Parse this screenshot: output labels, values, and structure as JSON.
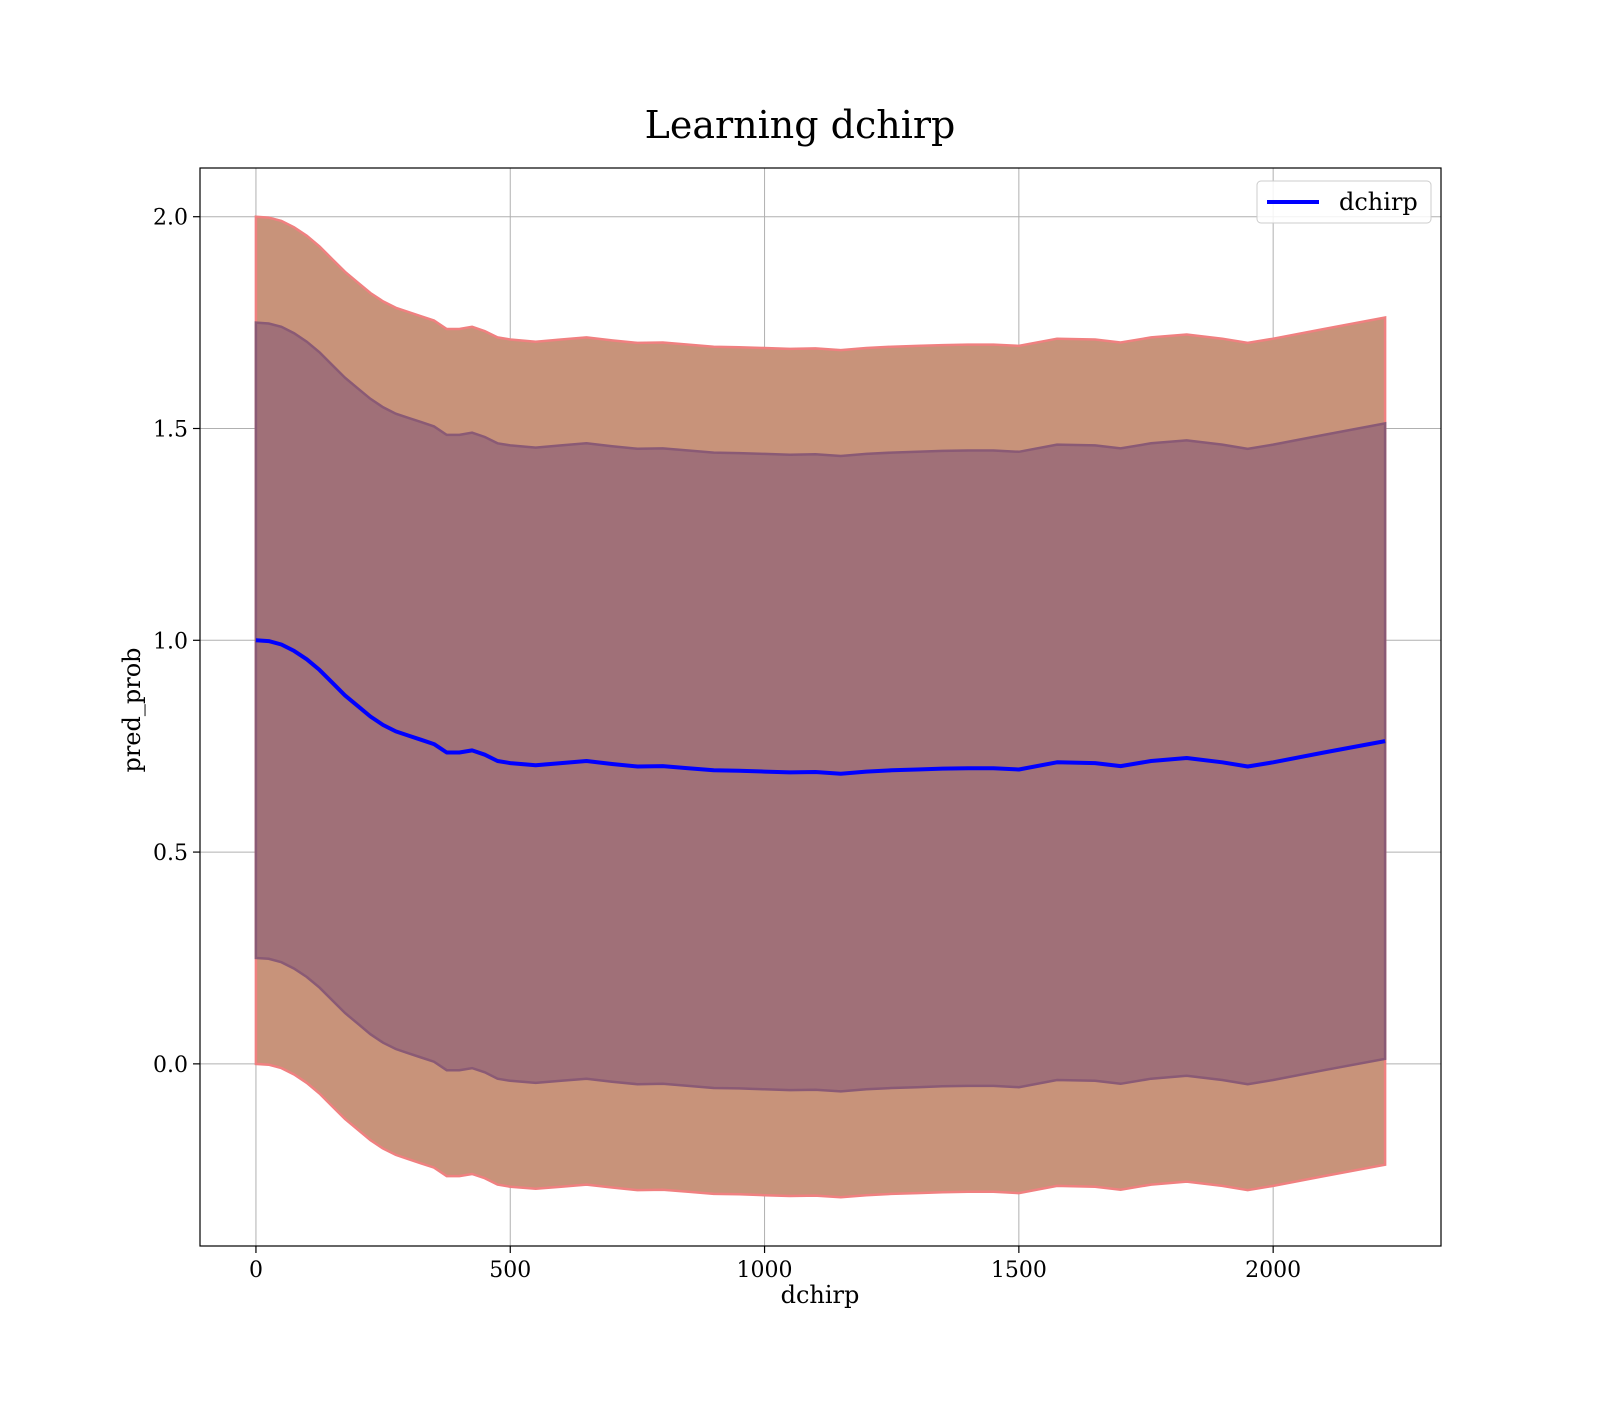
{
  "chart_data": {
    "type": "line",
    "title": "Learning dchirp",
    "xlabel": "dchirp",
    "ylabel": "pred_prob",
    "xlim": [
      -110,
      2330
    ],
    "ylim": [
      -0.43,
      2.115
    ],
    "xticks": [
      0,
      500,
      1000,
      1500,
      2000
    ],
    "yticks": [
      0.0,
      0.5,
      1.0,
      1.5,
      2.0
    ],
    "xtick_labels": [
      "0",
      "500",
      "1000",
      "1500",
      "2000"
    ],
    "ytick_labels": [
      "0.0",
      "0.5",
      "1.0",
      "1.5",
      "2.0"
    ],
    "grid": true,
    "legend": {
      "placement": "top-right",
      "entries": [
        "dchirp"
      ]
    },
    "series": [
      {
        "name": "dchirp",
        "color": "#0000ff",
        "x": [
          0,
          25,
          50,
          75,
          100,
          125,
          150,
          175,
          200,
          225,
          250,
          275,
          300,
          325,
          350,
          375,
          400,
          425,
          450,
          475,
          500,
          550,
          600,
          650,
          700,
          750,
          800,
          850,
          900,
          950,
          1000,
          1050,
          1100,
          1150,
          1200,
          1250,
          1300,
          1350,
          1400,
          1450,
          1500,
          1575,
          1650,
          1700,
          1760,
          1830,
          1900,
          1950,
          2000,
          2100,
          2220
        ],
        "y": [
          1.0,
          0.998,
          0.99,
          0.975,
          0.955,
          0.93,
          0.9,
          0.87,
          0.845,
          0.82,
          0.8,
          0.785,
          0.775,
          0.765,
          0.755,
          0.735,
          0.735,
          0.74,
          0.73,
          0.715,
          0.71,
          0.705,
          0.71,
          0.715,
          0.708,
          0.702,
          0.703,
          0.698,
          0.693,
          0.692,
          0.69,
          0.688,
          0.689,
          0.685,
          0.69,
          0.693,
          0.695,
          0.697,
          0.698,
          0.698,
          0.695,
          0.712,
          0.71,
          0.703,
          0.715,
          0.722,
          0.712,
          0.702,
          0.712,
          0.735,
          0.762
        ]
      }
    ],
    "bands": [
      {
        "label": "",
        "color": "#c8937a",
        "edge_color": "#f08080",
        "offset": 1.0
      },
      {
        "label": "",
        "color": "#a07078",
        "edge_color": "#8a5a75",
        "offset": 0.75
      }
    ]
  }
}
